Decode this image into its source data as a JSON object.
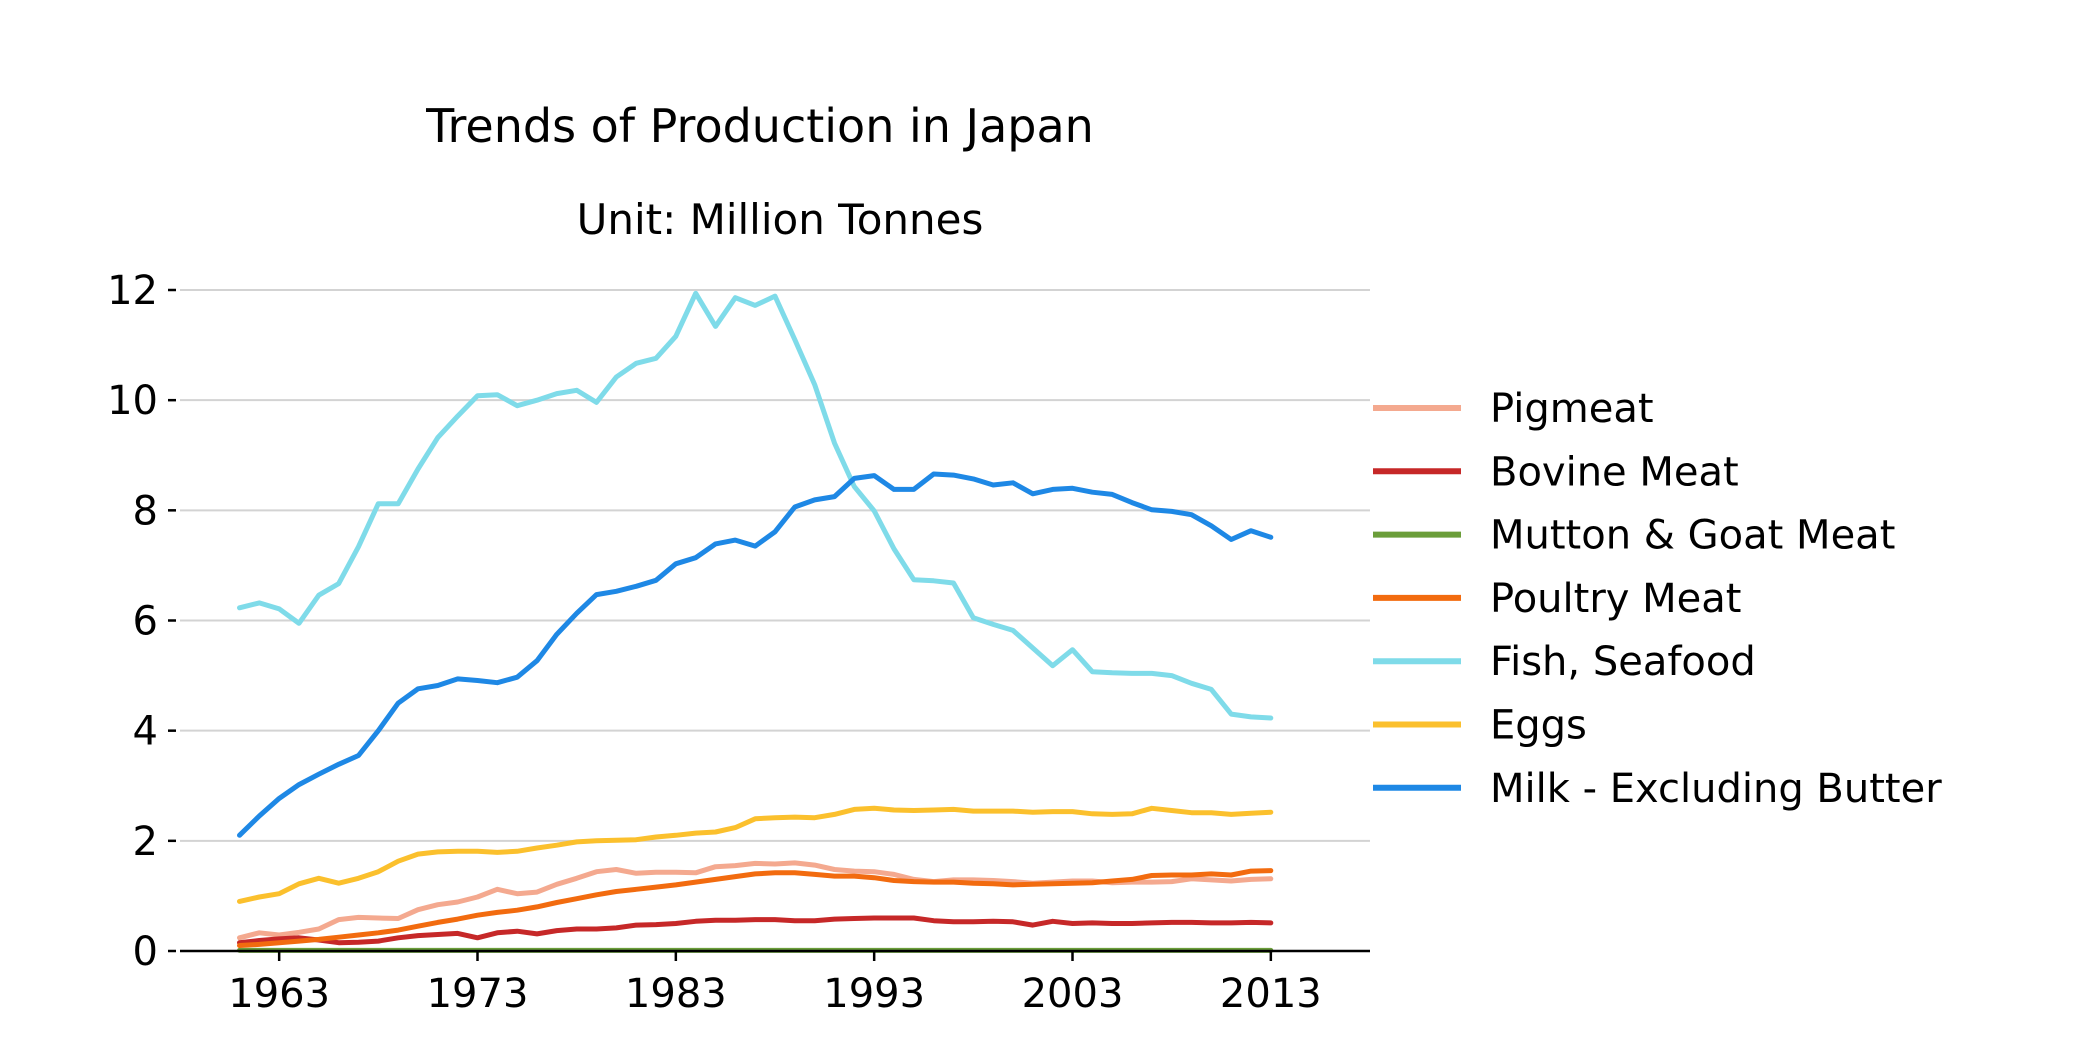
{
  "chart_data": {
    "type": "line",
    "title": "Trends of Production in Japan",
    "subtitle": "Unit: Million Tonnes",
    "xlabel": "",
    "ylabel": "",
    "xlim": [
      1958,
      2018
    ],
    "ylim": [
      0,
      12
    ],
    "x_ticks": [
      1963,
      1973,
      1983,
      1993,
      2003,
      2013
    ],
    "y_ticks": [
      0,
      2,
      4,
      6,
      8,
      10,
      12
    ],
    "grid": "horizontal",
    "legend_position": "right",
    "x": [
      1961,
      1962,
      1963,
      1964,
      1965,
      1966,
      1967,
      1968,
      1969,
      1970,
      1971,
      1972,
      1973,
      1974,
      1975,
      1976,
      1977,
      1978,
      1979,
      1980,
      1981,
      1982,
      1983,
      1984,
      1985,
      1986,
      1987,
      1988,
      1989,
      1990,
      1991,
      1992,
      1993,
      1994,
      1995,
      1996,
      1997,
      1998,
      1999,
      2000,
      2001,
      2002,
      2003,
      2004,
      2005,
      2006,
      2007,
      2008,
      2009,
      2010,
      2011,
      2012,
      2013
    ],
    "series": [
      {
        "name": "Pigmeat",
        "color": "#f4a98f",
        "values": [
          0.24,
          0.33,
          0.29,
          0.34,
          0.4,
          0.57,
          0.61,
          0.6,
          0.59,
          0.75,
          0.84,
          0.89,
          0.98,
          1.12,
          1.04,
          1.07,
          1.21,
          1.32,
          1.44,
          1.48,
          1.41,
          1.43,
          1.43,
          1.42,
          1.53,
          1.55,
          1.59,
          1.58,
          1.6,
          1.56,
          1.48,
          1.45,
          1.44,
          1.39,
          1.3,
          1.26,
          1.29,
          1.29,
          1.28,
          1.26,
          1.23,
          1.25,
          1.27,
          1.27,
          1.24,
          1.25,
          1.25,
          1.26,
          1.31,
          1.29,
          1.27,
          1.3,
          1.31
        ]
      },
      {
        "name": "Bovine Meat",
        "color": "#c62828",
        "values": [
          0.15,
          0.19,
          0.22,
          0.24,
          0.2,
          0.15,
          0.16,
          0.18,
          0.24,
          0.28,
          0.3,
          0.32,
          0.24,
          0.33,
          0.36,
          0.31,
          0.37,
          0.4,
          0.4,
          0.42,
          0.47,
          0.48,
          0.5,
          0.54,
          0.56,
          0.56,
          0.57,
          0.57,
          0.55,
          0.55,
          0.58,
          0.59,
          0.6,
          0.6,
          0.6,
          0.55,
          0.53,
          0.53,
          0.54,
          0.53,
          0.47,
          0.54,
          0.5,
          0.51,
          0.5,
          0.5,
          0.51,
          0.52,
          0.52,
          0.51,
          0.51,
          0.52,
          0.51
        ]
      },
      {
        "name": "Mutton & Goat Meat",
        "color": "#6b9e3a",
        "values": [
          0.01,
          0.01,
          0.01,
          0.01,
          0.01,
          0.01,
          0.01,
          0.01,
          0.01,
          0.01,
          0.01,
          0.01,
          0.01,
          0.01,
          0.01,
          0.01,
          0.01,
          0.01,
          0.01,
          0.01,
          0.01,
          0.01,
          0.01,
          0.01,
          0.01,
          0.01,
          0.01,
          0.01,
          0.01,
          0.01,
          0.01,
          0.01,
          0.01,
          0.01,
          0.01,
          0.01,
          0.01,
          0.01,
          0.01,
          0.01,
          0.01,
          0.01,
          0.01,
          0.01,
          0.01,
          0.01,
          0.01,
          0.01,
          0.01,
          0.01,
          0.01,
          0.01,
          0.01
        ]
      },
      {
        "name": "Poultry Meat",
        "color": "#f26b0f",
        "values": [
          0.1,
          0.12,
          0.15,
          0.18,
          0.21,
          0.25,
          0.29,
          0.33,
          0.38,
          0.45,
          0.52,
          0.58,
          0.65,
          0.7,
          0.74,
          0.8,
          0.88,
          0.95,
          1.02,
          1.08,
          1.12,
          1.16,
          1.2,
          1.25,
          1.3,
          1.35,
          1.4,
          1.42,
          1.42,
          1.39,
          1.36,
          1.36,
          1.33,
          1.28,
          1.26,
          1.25,
          1.25,
          1.23,
          1.22,
          1.2,
          1.21,
          1.22,
          1.23,
          1.24,
          1.27,
          1.3,
          1.37,
          1.38,
          1.38,
          1.4,
          1.38,
          1.45,
          1.46
        ]
      },
      {
        "name": "Fish, Seafood",
        "color": "#7fdbe9",
        "values": [
          6.23,
          6.32,
          6.21,
          5.95,
          6.46,
          6.67,
          7.34,
          8.12,
          8.12,
          8.75,
          9.32,
          9.71,
          10.08,
          10.1,
          9.9,
          10.0,
          10.12,
          10.18,
          9.96,
          10.42,
          10.67,
          10.76,
          11.16,
          11.94,
          11.34,
          11.86,
          11.72,
          11.89,
          11.1,
          10.28,
          9.22,
          8.43,
          7.99,
          7.3,
          6.74,
          6.72,
          6.68,
          6.05,
          5.93,
          5.82,
          5.5,
          5.18,
          5.47,
          5.07,
          5.05,
          5.04,
          5.04,
          5.0,
          4.86,
          4.75,
          4.3,
          4.25,
          4.23
        ]
      },
      {
        "name": "Eggs",
        "color": "#fbc02d",
        "values": [
          0.9,
          0.98,
          1.04,
          1.22,
          1.32,
          1.23,
          1.32,
          1.44,
          1.63,
          1.76,
          1.8,
          1.81,
          1.81,
          1.79,
          1.81,
          1.87,
          1.92,
          1.98,
          2.0,
          2.01,
          2.02,
          2.07,
          2.1,
          2.14,
          2.16,
          2.24,
          2.4,
          2.42,
          2.43,
          2.42,
          2.48,
          2.57,
          2.59,
          2.56,
          2.55,
          2.56,
          2.57,
          2.54,
          2.54,
          2.54,
          2.52,
          2.53,
          2.53,
          2.49,
          2.48,
          2.49,
          2.59,
          2.55,
          2.51,
          2.51,
          2.48,
          2.5,
          2.52
        ]
      },
      {
        "name": "Milk - Excluding Butter",
        "color": "#1e88e5",
        "values": [
          2.1,
          2.45,
          2.77,
          3.02,
          3.21,
          3.39,
          3.55,
          4.0,
          4.5,
          4.76,
          4.82,
          4.94,
          4.91,
          4.87,
          4.97,
          5.27,
          5.75,
          6.13,
          6.47,
          6.53,
          6.62,
          6.73,
          7.03,
          7.14,
          7.39,
          7.46,
          7.35,
          7.61,
          8.06,
          8.19,
          8.25,
          8.58,
          8.63,
          8.38,
          8.38,
          8.66,
          8.64,
          8.57,
          8.46,
          8.5,
          8.3,
          8.38,
          8.4,
          8.33,
          8.29,
          8.14,
          8.01,
          7.98,
          7.92,
          7.72,
          7.47,
          7.63,
          7.51
        ]
      }
    ]
  }
}
